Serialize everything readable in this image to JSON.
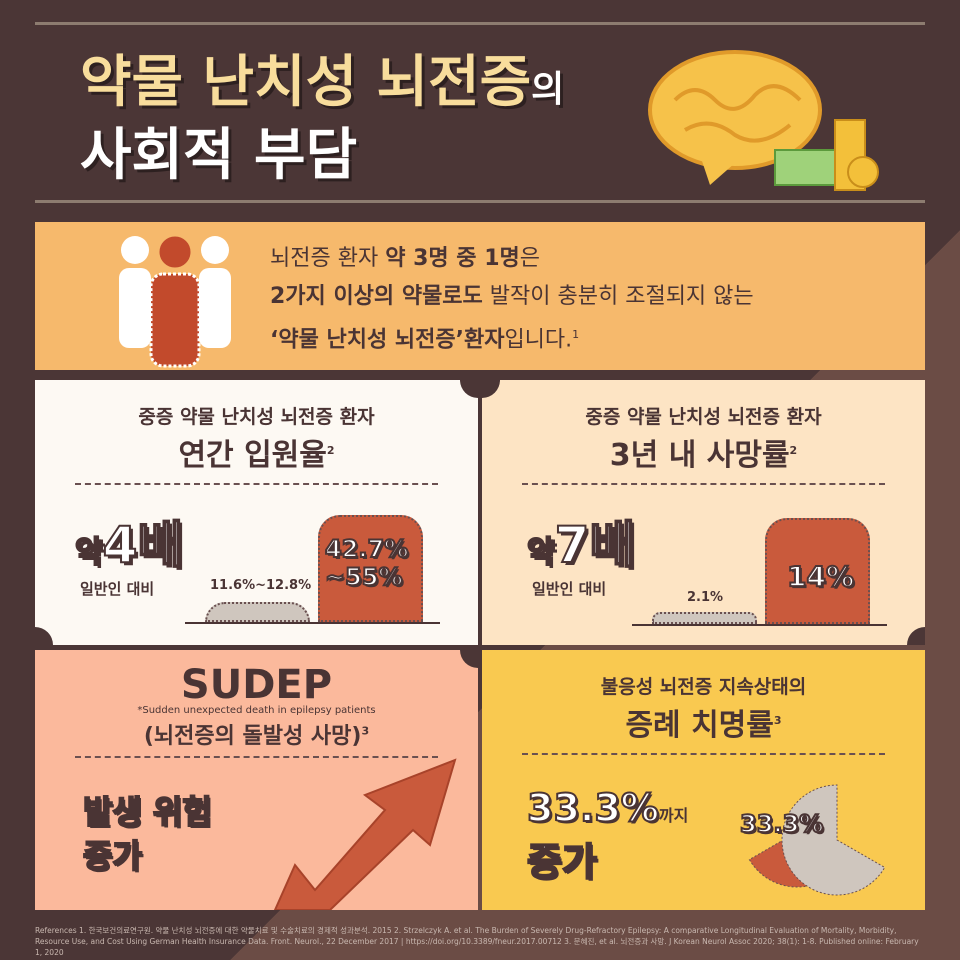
{
  "header": {
    "title_line1": "약물 난치성 뇌전증",
    "title_suffix": "의",
    "title_line2": "사회적 부담",
    "icons": [
      "brain-icon",
      "money-coins-icon"
    ]
  },
  "banner": {
    "icon": "people-icon",
    "line1_a": "뇌전증 환자 ",
    "line1_b": "약 3명 중 1명",
    "line1_c": "은",
    "line2_a": "2가지 이상의 약물로도",
    "line2_b": " 발작이 충분히 조절되지 않는",
    "line3_a": "‘약물 난치성 뇌전증’환자",
    "line3_b": "입니다.",
    "line3_sup": "1"
  },
  "hospitalization": {
    "subtitle": "중증 약물 난치성 뇌전증 환자",
    "title": "연간 입원율",
    "sup": "2",
    "prefix": "약",
    "multiplier": "4배",
    "compare": "일반인 대비",
    "general_value": "11.6%~12.8%",
    "patient_value_1": "42.7%",
    "patient_value_2": "~55%",
    "colors": {
      "general": "#cfc6be",
      "patient": "#c95a3c"
    }
  },
  "mortality": {
    "subtitle": "중증 약물 난치성 뇌전증 환자",
    "title": "3년 내 사망률",
    "sup": "2",
    "prefix": "약",
    "multiplier": "7배",
    "compare": "일반인 대비",
    "general_value": "2.1%",
    "patient_value": "14%",
    "general_pct": 2.1,
    "patient_pct": 14
  },
  "sudep": {
    "title": "SUDEP",
    "note": "*Sudden unexpected death in epilepsy patients",
    "subtitle": "(뇌전증의 돌발성 사망)",
    "sup": "3",
    "result_line1": "발생 위험",
    "result_line2": "증가",
    "icon": "arrow-up-icon"
  },
  "status": {
    "subtitle": "불응성 뇌전증 지속상태의",
    "title": "증례 치명률",
    "sup": "3",
    "value": "33.3%",
    "until": "까지",
    "increase": "증가",
    "pie_label": "33.3%",
    "pie_fraction": 0.333
  },
  "references": "References 1. 한국보건의료연구원. 약물 난치성 뇌전증에 대한 약물치료 및 수술치료의 경제적 성과분석. 2015 2. Strzelczyk A. et al. The Burden of Severely Drug-Refractory Epilepsy: A comparative Longitudinal Evaluation of Mortality, Morbidity, Resource Use, and Cost Using German Health Insurance Data. Front. Neurol., 22 December 2017 | https://doi.org/10.3389/fneur.2017.00712 3. 문혜진, et al. 뇌전증과 사망. J Korean Neurol Assoc 2020; 38(1): 1-8. Published online: February 1, 2020"
}
